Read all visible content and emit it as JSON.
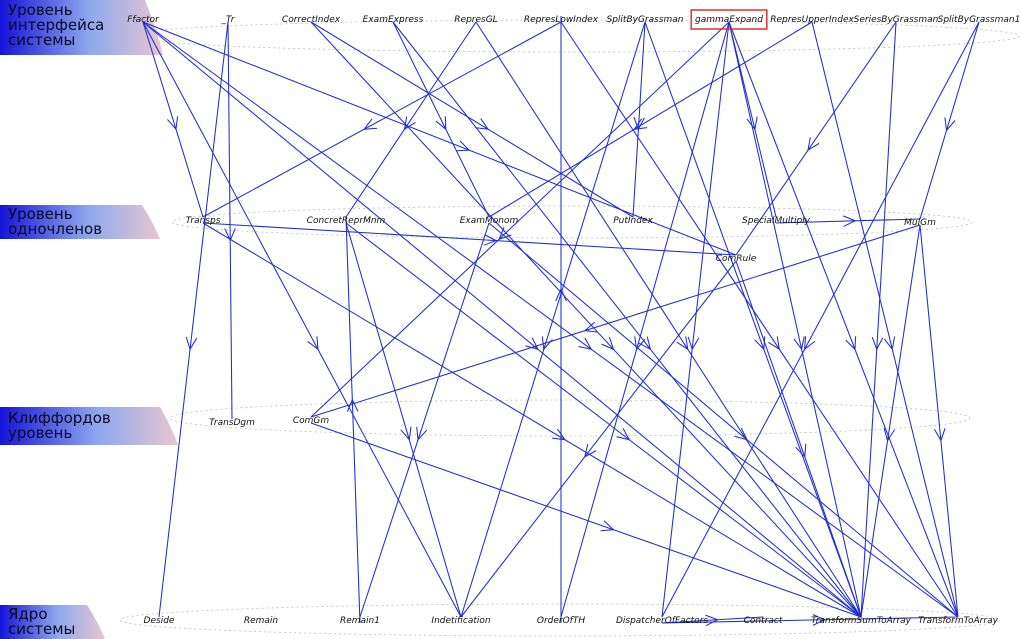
{
  "levels": [
    {
      "id": "interface",
      "label": "Уровень интерфейса системы"
    },
    {
      "id": "monomial",
      "label": "Уровень одночленов"
    },
    {
      "id": "clifford",
      "label": "Клиффордов уровень"
    },
    {
      "id": "core",
      "label": "Ядро системы"
    }
  ],
  "nodes": [
    {
      "id": "Ffactor",
      "label": "Ffactor",
      "level": "interface"
    },
    {
      "id": "Tr",
      "label": "_Tr",
      "level": "interface"
    },
    {
      "id": "CorrectIndex",
      "label": "CorrectIndex",
      "level": "interface"
    },
    {
      "id": "ExamExpress",
      "label": "ExamExpress",
      "level": "interface"
    },
    {
      "id": "RepresGL",
      "label": "RepresGL",
      "level": "interface"
    },
    {
      "id": "RepresLowIndex",
      "label": "RepresLowIndex",
      "level": "interface"
    },
    {
      "id": "SplitByGrassman",
      "label": "SplitByGrassman",
      "level": "interface"
    },
    {
      "id": "gammaExpand",
      "label": "gammaExpand",
      "level": "interface",
      "highlighted": true
    },
    {
      "id": "RepresUpperIndex",
      "label": "RepresUpperIndex",
      "level": "interface"
    },
    {
      "id": "SeriesByGrassman",
      "label": "SeriesByGrassman",
      "level": "interface"
    },
    {
      "id": "SplitByGrassman1",
      "label": "SplitByGrassman1",
      "level": "interface"
    },
    {
      "id": "Transps",
      "label": "Transps",
      "level": "monomial"
    },
    {
      "id": "ConcretReprMnm",
      "label": "ConcretReprMnm",
      "level": "monomial"
    },
    {
      "id": "ExamMonom",
      "label": "ExamMonom",
      "level": "monomial"
    },
    {
      "id": "PutIndex",
      "label": "PutIndex",
      "level": "monomial"
    },
    {
      "id": "SpecialMultiply",
      "label": "SpecialMultiply",
      "level": "monomial"
    },
    {
      "id": "MulGm",
      "label": "MulGm",
      "level": "monomial"
    },
    {
      "id": "ComRule",
      "label": "ComRule",
      "level": "monomial"
    },
    {
      "id": "TransDgm",
      "label": "TransDgm",
      "level": "clifford"
    },
    {
      "id": "ComGm",
      "label": "ComGm",
      "level": "clifford"
    },
    {
      "id": "Deside",
      "label": "Deside",
      "level": "core"
    },
    {
      "id": "Remain",
      "label": "Remain",
      "level": "core"
    },
    {
      "id": "Remain1",
      "label": "Remain1",
      "level": "core"
    },
    {
      "id": "Indetification",
      "label": "Indetification",
      "level": "core"
    },
    {
      "id": "OrderOfTH",
      "label": "OrderOfTH",
      "level": "core"
    },
    {
      "id": "DispatcherOfFactors",
      "label": "DispatcherOfFactors",
      "level": "core"
    },
    {
      "id": "Contract",
      "label": "Contract",
      "level": "core"
    },
    {
      "id": "TransformSumToArray",
      "label": "TransformSumToArray",
      "level": "core"
    },
    {
      "id": "TransformToArray",
      "label": "TransformToArray",
      "level": "core"
    }
  ],
  "edges": [
    [
      "Ffactor",
      "Transps"
    ],
    [
      "Ffactor",
      "ComRule"
    ],
    [
      "Ffactor",
      "TransformSumToArray"
    ],
    [
      "Ffactor",
      "TransformToArray"
    ],
    [
      "Ffactor",
      "Indetification"
    ],
    [
      "Tr",
      "TransDgm"
    ],
    [
      "Tr",
      "Deside"
    ],
    [
      "CorrectIndex",
      "PutIndex"
    ],
    [
      "CorrectIndex",
      "TransformSumToArray"
    ],
    [
      "ExamExpress",
      "ExamMonom"
    ],
    [
      "ExamExpress",
      "TransformSumToArray"
    ],
    [
      "RepresGL",
      "ConcretReprMnm"
    ],
    [
      "RepresGL",
      "TransformSumToArray"
    ],
    [
      "RepresLowIndex",
      "Transps"
    ],
    [
      "RepresLowIndex",
      "TransformToArray"
    ],
    [
      "SplitByGrassman",
      "PutIndex"
    ],
    [
      "SplitByGrassman",
      "TransformSumToArray"
    ],
    [
      "SplitByGrassman",
      "Indetification"
    ],
    [
      "gammaExpand",
      "SpecialMultiply"
    ],
    [
      "gammaExpand",
      "ComGm"
    ],
    [
      "gammaExpand",
      "TransformSumToArray"
    ],
    [
      "gammaExpand",
      "TransformToArray"
    ],
    [
      "gammaExpand",
      "DispatcherOfFactors"
    ],
    [
      "gammaExpand",
      "OrderOfTH"
    ],
    [
      "RepresUpperIndex",
      "ExamMonom"
    ],
    [
      "RepresUpperIndex",
      "TransformToArray"
    ],
    [
      "SeriesByGrassman",
      "ComRule"
    ],
    [
      "SeriesByGrassman",
      "TransformSumToArray"
    ],
    [
      "SplitByGrassman1",
      "MulGm"
    ],
    [
      "SplitByGrassman1",
      "DispatcherOfFactors"
    ],
    [
      "Transps",
      "ComRule"
    ],
    [
      "Transps",
      "TransformSumToArray"
    ],
    [
      "ConcretReprMnm",
      "Indetification"
    ],
    [
      "ConcretReprMnm",
      "TransformSumToArray"
    ],
    [
      "ExamMonom",
      "Remain1"
    ],
    [
      "ExamMonom",
      "TransformToArray"
    ],
    [
      "SpecialMultiply",
      "MulGm"
    ],
    [
      "MulGm",
      "ComGm"
    ],
    [
      "MulGm",
      "TransformToArray"
    ],
    [
      "MulGm",
      "TransformSumToArray"
    ],
    [
      "ComRule",
      "Indetification"
    ],
    [
      "ComRule",
      "TransformSumToArray"
    ],
    [
      "ComGm",
      "TransformSumToArray"
    ],
    [
      "DispatcherOfFactors",
      "Contract"
    ],
    [
      "DispatcherOfFactors",
      "TransformToArray"
    ],
    [
      "Remain1",
      "ConcretReprMnm"
    ],
    [
      "OrderOfTH",
      "RepresLowIndex"
    ]
  ]
}
